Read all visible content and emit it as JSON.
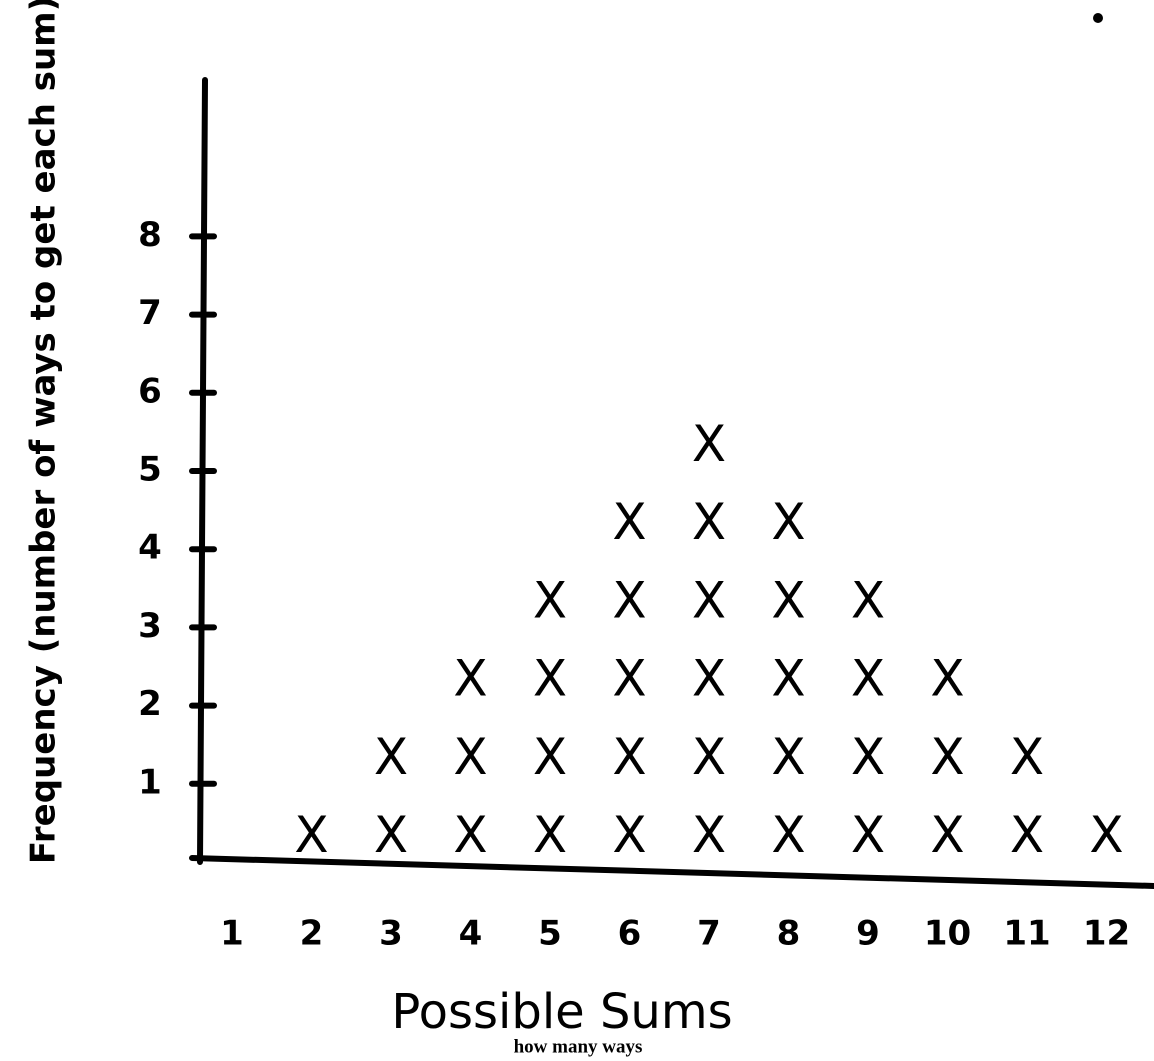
{
  "chart_data": {
    "type": "dot",
    "y_label": "Frequency (number of ways to get each sum)",
    "x_label": "Possible Sums",
    "caption": "how many ways",
    "categories": [
      "1",
      "2",
      "3",
      "4",
      "5",
      "6",
      "7",
      "8",
      "9",
      "10",
      "11",
      "12"
    ],
    "values": [
      0,
      1,
      2,
      3,
      4,
      5,
      6,
      5,
      4,
      3,
      2,
      1
    ],
    "ylim": [
      0,
      10
    ],
    "yticks": [
      1,
      2,
      3,
      4,
      5,
      6,
      7,
      8
    ],
    "marker": "X",
    "color": "#000000"
  }
}
